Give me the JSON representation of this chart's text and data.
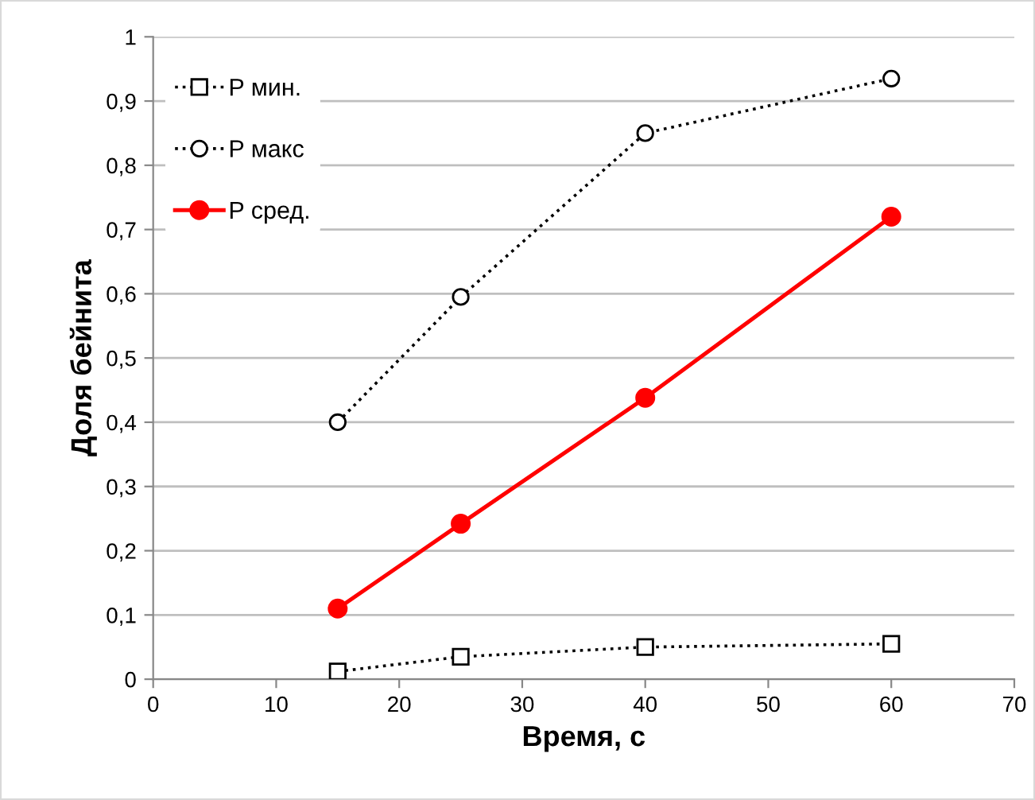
{
  "chart_data": {
    "type": "line",
    "xlabel": "Время, с",
    "ylabel": "Доля бейнита",
    "x": [
      15,
      25,
      40,
      60
    ],
    "series": [
      {
        "name": "P мин.",
        "color": "#000000",
        "marker": "square",
        "line_style": "dotted",
        "values": [
          0.012,
          0.035,
          0.05,
          0.055
        ]
      },
      {
        "name": "P макс",
        "color": "#000000",
        "marker": "circle",
        "line_style": "dotted",
        "values": [
          0.4,
          0.595,
          0.85,
          0.935
        ]
      },
      {
        "name": "P сред.",
        "color": "#ff0000",
        "marker": "circle",
        "line_style": "solid",
        "values": [
          0.11,
          0.242,
          0.438,
          0.72
        ]
      }
    ],
    "xlim": [
      0,
      70
    ],
    "xticks": [
      0,
      10,
      20,
      30,
      40,
      50,
      60,
      70
    ],
    "ylim": [
      0,
      1
    ],
    "yticks": [
      0,
      {
        "value": 0.1,
        "label": "0,1"
      },
      {
        "value": 0.2,
        "label": "0,2"
      },
      {
        "value": 0.3,
        "label": "0,3"
      },
      {
        "value": 0.4,
        "label": "0,4"
      },
      {
        "value": 0.5,
        "label": "0,5"
      },
      {
        "value": 0.6,
        "label": "0,6"
      },
      {
        "value": 0.7,
        "label": "0,7"
      },
      {
        "value": 0.8,
        "label": "0,8"
      },
      {
        "value": 0.9,
        "label": "0,9"
      },
      1
    ],
    "grid": "y",
    "legend": "top left"
  }
}
